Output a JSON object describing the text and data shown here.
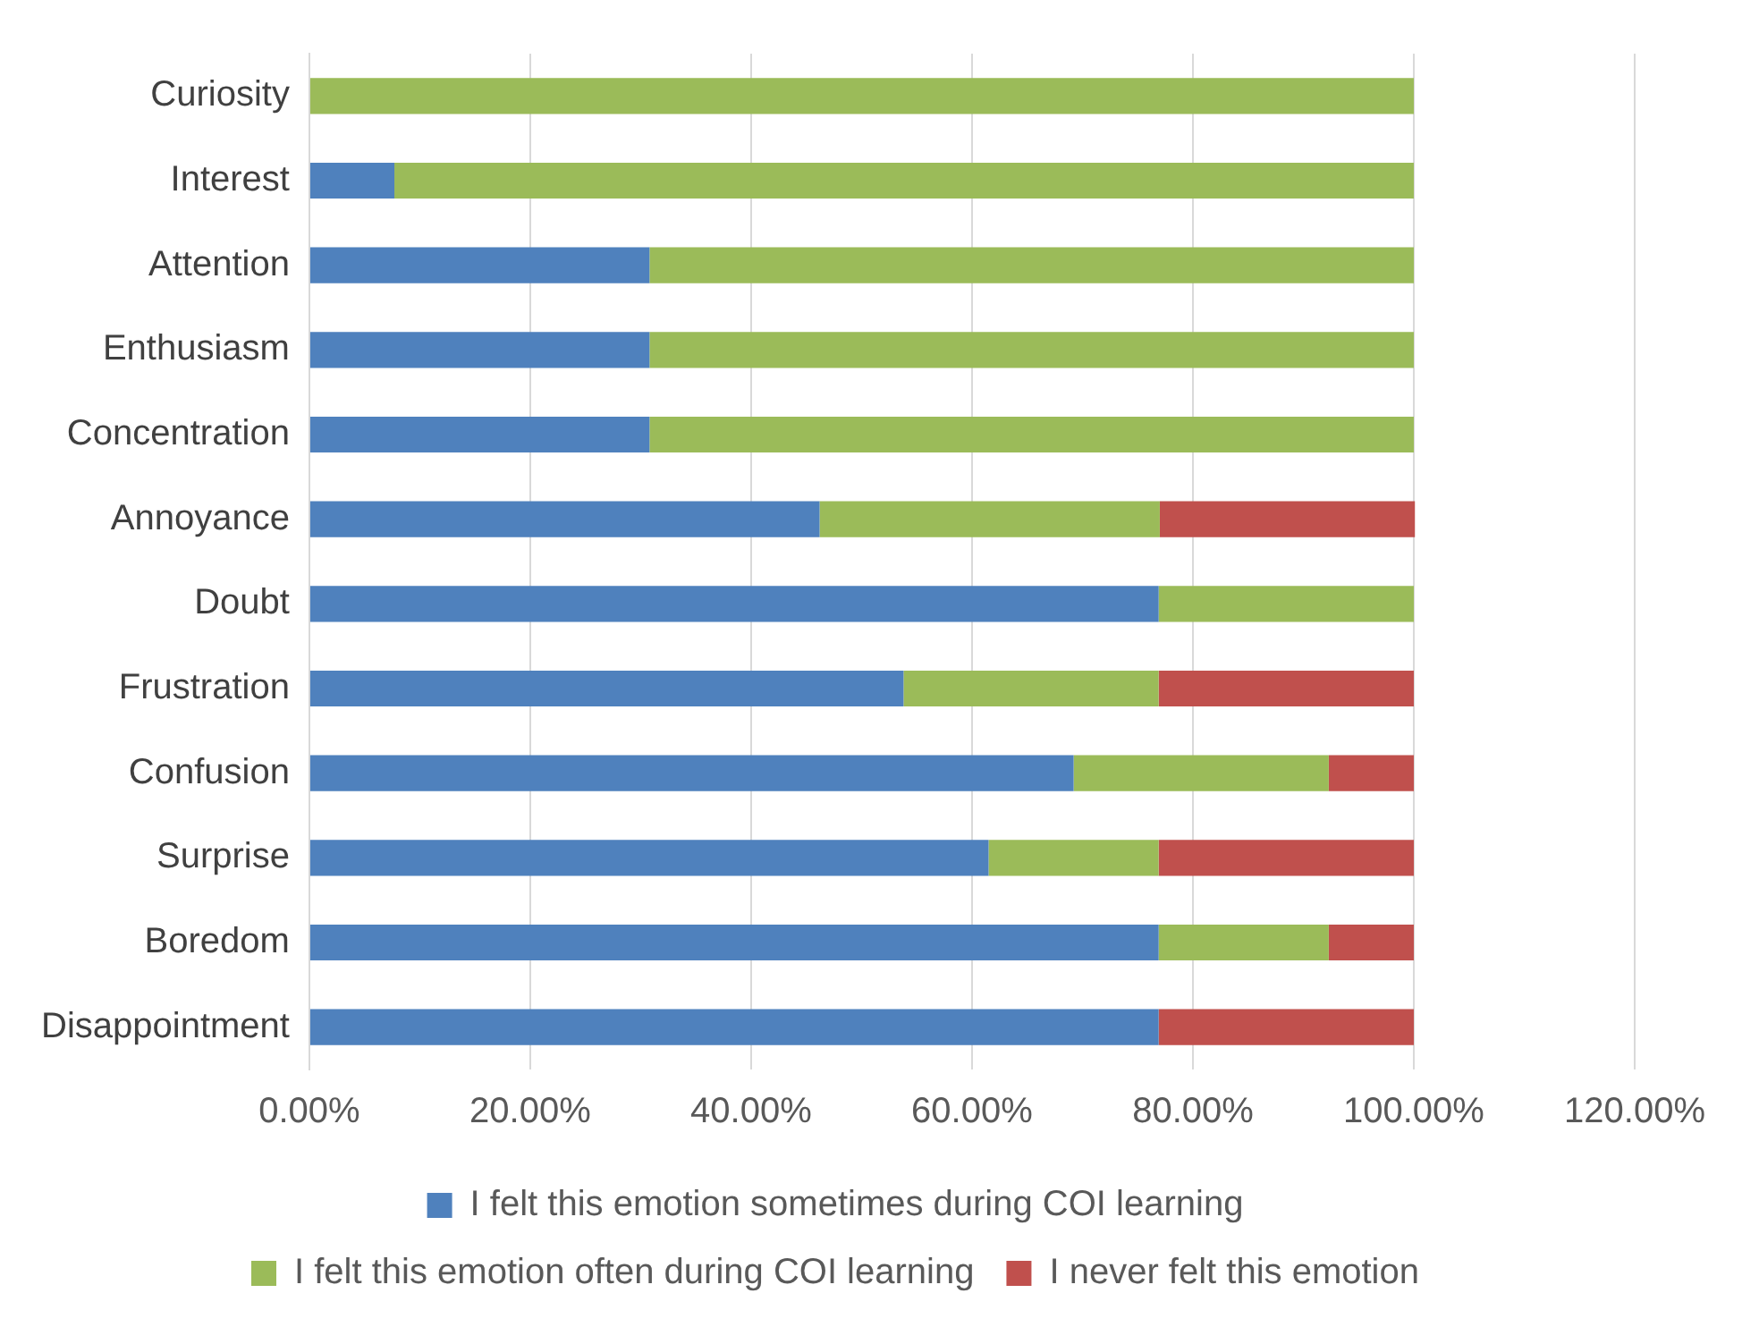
{
  "chart_data": {
    "type": "bar",
    "orientation": "horizontal",
    "stacked": true,
    "categories": [
      "Curiosity",
      "Interest",
      "Attention",
      "Enthusiasm",
      "Concentration",
      "Annoyance",
      "Doubt",
      "Frustration",
      "Confusion",
      "Surprise",
      "Boredom",
      "Disappointment"
    ],
    "series": [
      {
        "name": "I felt this emotion sometimes during COI learning",
        "color": "#4f81bd",
        "values": [
          0,
          7.7,
          30.8,
          30.8,
          30.8,
          46.2,
          76.9,
          53.8,
          69.2,
          61.5,
          76.9,
          76.9
        ]
      },
      {
        "name": "I felt this emotion often during COI learning",
        "color": "#9bbb59",
        "values": [
          100,
          92.3,
          69.2,
          69.2,
          69.2,
          30.8,
          23.1,
          23.1,
          23.1,
          15.4,
          15.4,
          0
        ]
      },
      {
        "name": "I never felt this emotion",
        "color": "#c0504d",
        "values": [
          0,
          0,
          0,
          0,
          0,
          23.1,
          0,
          23.1,
          7.7,
          23.1,
          7.7,
          23.1
        ]
      }
    ],
    "xlim": [
      0,
      120
    ],
    "xticks": [
      {
        "value": 0,
        "label": "0.00%"
      },
      {
        "value": 20,
        "label": "20.00%"
      },
      {
        "value": 40,
        "label": "40.00%"
      },
      {
        "value": 60,
        "label": "60.00%"
      },
      {
        "value": 80,
        "label": "80.00%"
      },
      {
        "value": 100,
        "label": "100.00%"
      },
      {
        "value": 120,
        "label": "120.00%"
      }
    ],
    "grid": "x",
    "legend": "bottom"
  }
}
